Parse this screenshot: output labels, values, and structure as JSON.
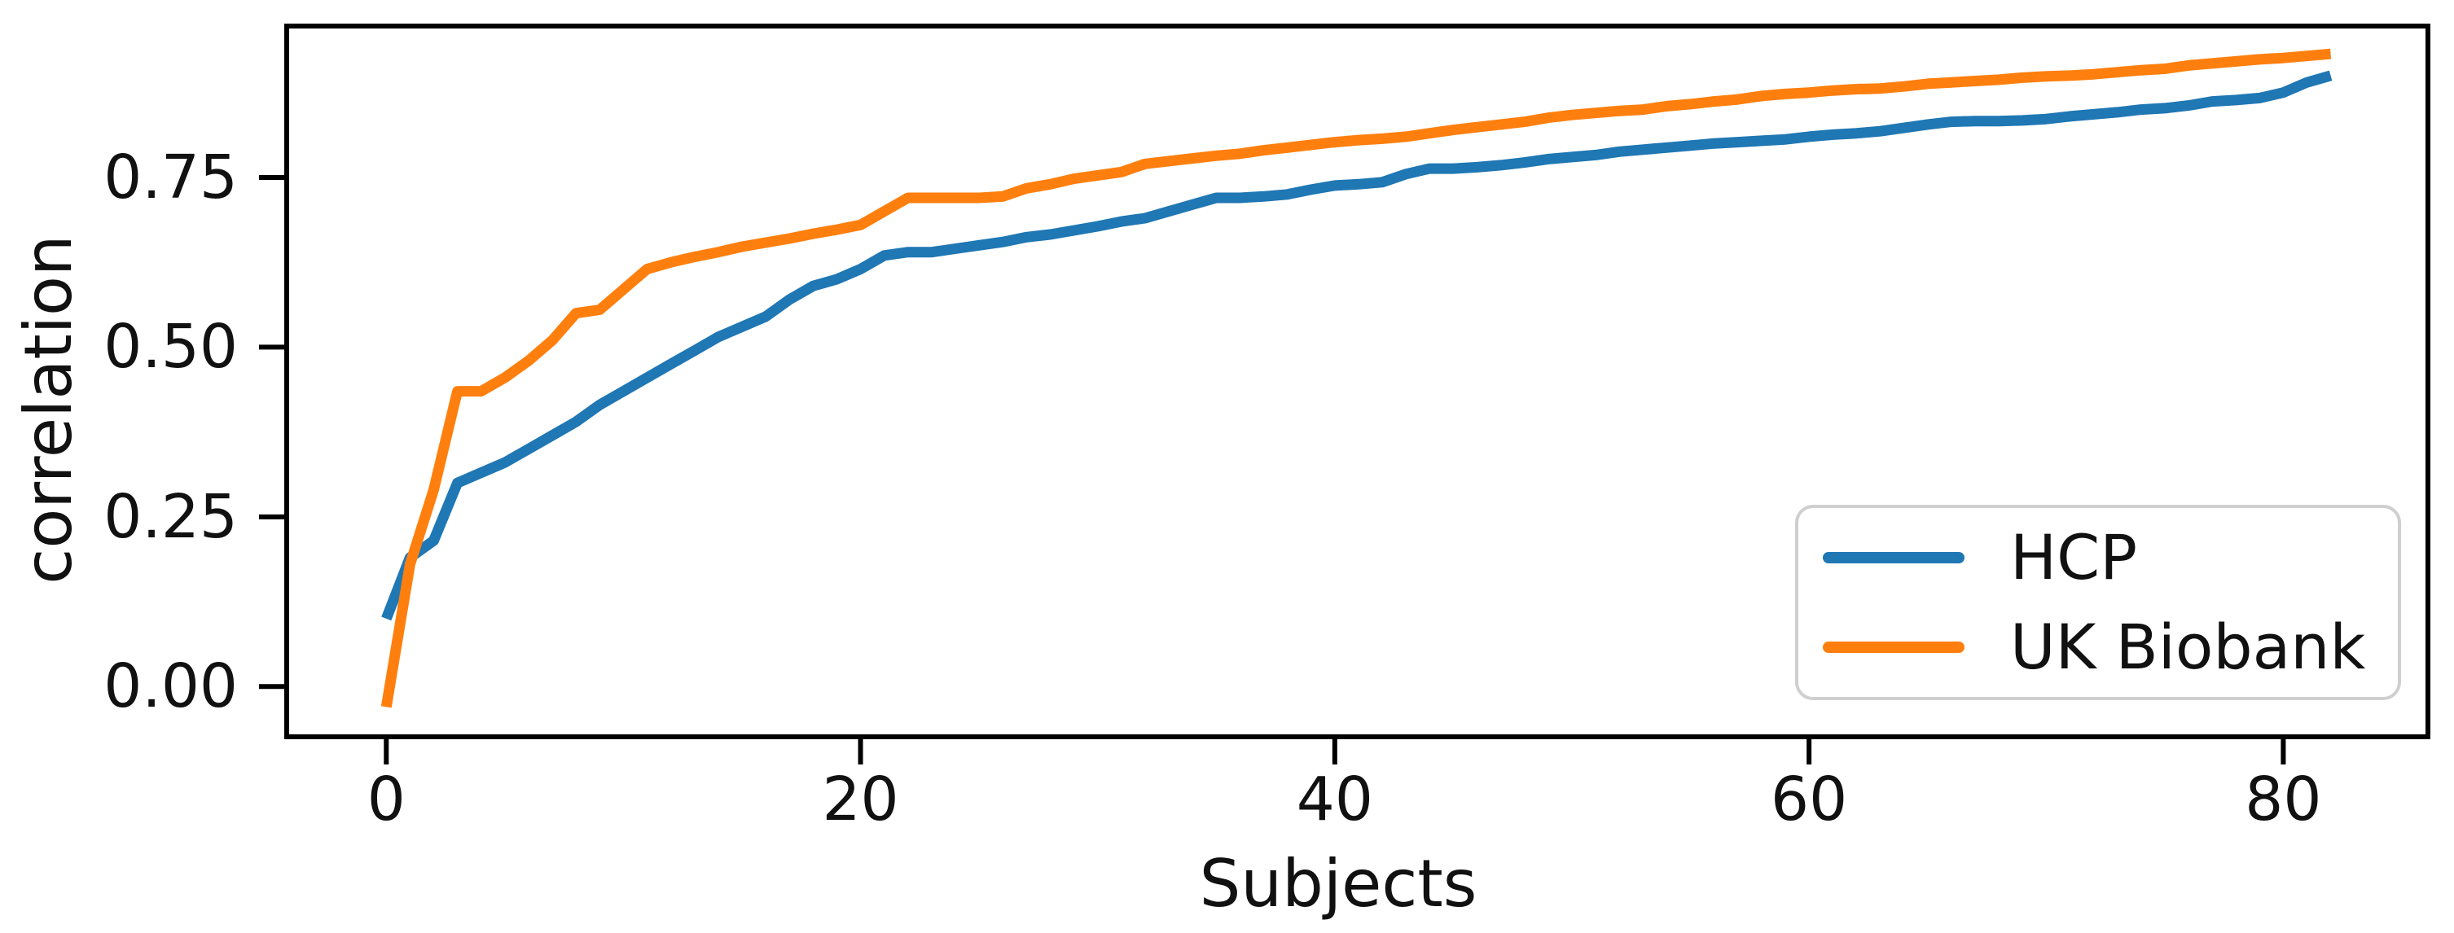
{
  "chart_data": {
    "type": "line",
    "title": "",
    "xlabel": "Subjects",
    "ylabel": "correlation",
    "xlim": [
      -4.2,
      86.1
    ],
    "ylim": [
      -0.074,
      0.973
    ],
    "x_ticks": [
      0,
      20,
      40,
      60,
      80
    ],
    "x_tick_labels": [
      "0",
      "20",
      "40",
      "60",
      "80"
    ],
    "y_ticks": [
      0.0,
      0.25,
      0.5,
      0.75
    ],
    "y_tick_labels": [
      "0.00",
      "0.25",
      "0.50",
      "0.75"
    ],
    "grid": false,
    "legend_position": "lower right",
    "frame_color": "#000000",
    "text_color": "#111111",
    "x": [
      0,
      1,
      2,
      3,
      4,
      5,
      6,
      7,
      8,
      9,
      10,
      11,
      12,
      13,
      14,
      15,
      16,
      17,
      18,
      19,
      20,
      21,
      22,
      23,
      24,
      25,
      26,
      27,
      28,
      29,
      30,
      31,
      32,
      33,
      34,
      35,
      36,
      37,
      38,
      39,
      40,
      41,
      42,
      43,
      44,
      45,
      46,
      47,
      48,
      49,
      50,
      51,
      52,
      53,
      54,
      55,
      56,
      57,
      58,
      59,
      60,
      61,
      62,
      63,
      64,
      65,
      66,
      67,
      68,
      69,
      70,
      71,
      72,
      73,
      74,
      75,
      76,
      77,
      78,
      79,
      80,
      81,
      82
    ],
    "series": [
      {
        "name": "HCP",
        "color": "#1f77b4",
        "values": [
          0.1,
          0.19,
          0.215,
          0.3,
          0.315,
          0.33,
          0.35,
          0.37,
          0.39,
          0.415,
          0.435,
          0.455,
          0.475,
          0.495,
          0.515,
          0.53,
          0.545,
          0.57,
          0.59,
          0.6,
          0.615,
          0.635,
          0.64,
          0.64,
          0.645,
          0.65,
          0.655,
          0.662,
          0.666,
          0.672,
          0.678,
          0.685,
          0.69,
          0.7,
          0.71,
          0.72,
          0.72,
          0.722,
          0.725,
          0.732,
          0.738,
          0.74,
          0.743,
          0.755,
          0.763,
          0.763,
          0.765,
          0.768,
          0.772,
          0.777,
          0.78,
          0.783,
          0.788,
          0.791,
          0.794,
          0.797,
          0.8,
          0.802,
          0.804,
          0.806,
          0.81,
          0.813,
          0.815,
          0.818,
          0.823,
          0.828,
          0.832,
          0.833,
          0.833,
          0.834,
          0.836,
          0.84,
          0.843,
          0.846,
          0.85,
          0.852,
          0.856,
          0.862,
          0.864,
          0.867,
          0.875,
          0.89,
          0.9
        ]
      },
      {
        "name": "UK Biobank",
        "color": "#ff7f0e",
        "values": [
          -0.03,
          0.18,
          0.29,
          0.435,
          0.435,
          0.455,
          0.48,
          0.51,
          0.55,
          0.555,
          0.585,
          0.615,
          0.625,
          0.633,
          0.64,
          0.648,
          0.654,
          0.66,
          0.667,
          0.673,
          0.68,
          0.7,
          0.72,
          0.72,
          0.72,
          0.72,
          0.722,
          0.734,
          0.74,
          0.748,
          0.753,
          0.758,
          0.77,
          0.774,
          0.778,
          0.782,
          0.785,
          0.79,
          0.794,
          0.798,
          0.802,
          0.805,
          0.807,
          0.81,
          0.815,
          0.82,
          0.824,
          0.828,
          0.832,
          0.838,
          0.842,
          0.845,
          0.848,
          0.85,
          0.855,
          0.858,
          0.862,
          0.865,
          0.87,
          0.873,
          0.875,
          0.878,
          0.88,
          0.881,
          0.884,
          0.888,
          0.89,
          0.892,
          0.894,
          0.897,
          0.899,
          0.9,
          0.902,
          0.905,
          0.908,
          0.91,
          0.915,
          0.918,
          0.921,
          0.924,
          0.926,
          0.929,
          0.932
        ]
      }
    ]
  }
}
